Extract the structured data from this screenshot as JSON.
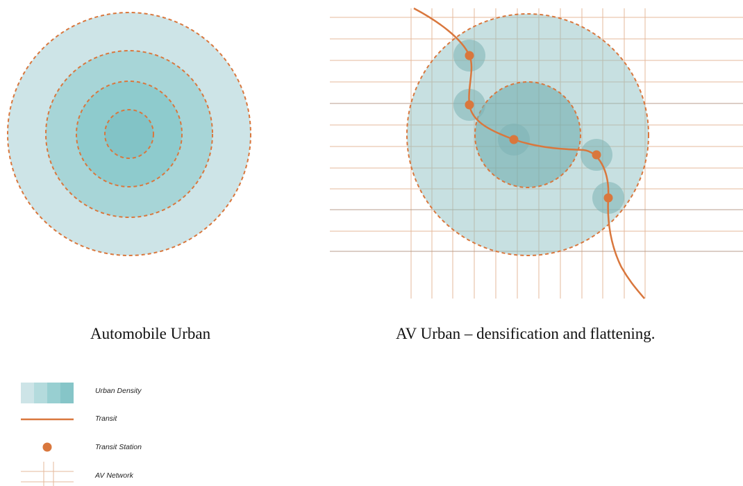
{
  "diagram_left": {
    "caption": "Automobile Urban"
  },
  "diagram_right": {
    "caption": "AV Urban – densification and flattening."
  },
  "legend": {
    "urban_density": "Urban Density",
    "transit": "Transit",
    "transit_station": "Transit Station",
    "av_network": "AV Network"
  },
  "colors": {
    "density_light": "#cde4e7",
    "density_mid": "#a7d5d7",
    "density_strong": "#8ecbcd",
    "density_core": "#82c3c6",
    "overlay_teal": "#7cb3b5",
    "transit": "#d9773d",
    "grid_line": "#e5b99b",
    "grid_line_dark": "#b89e8c",
    "dash": "#d9773d"
  }
}
